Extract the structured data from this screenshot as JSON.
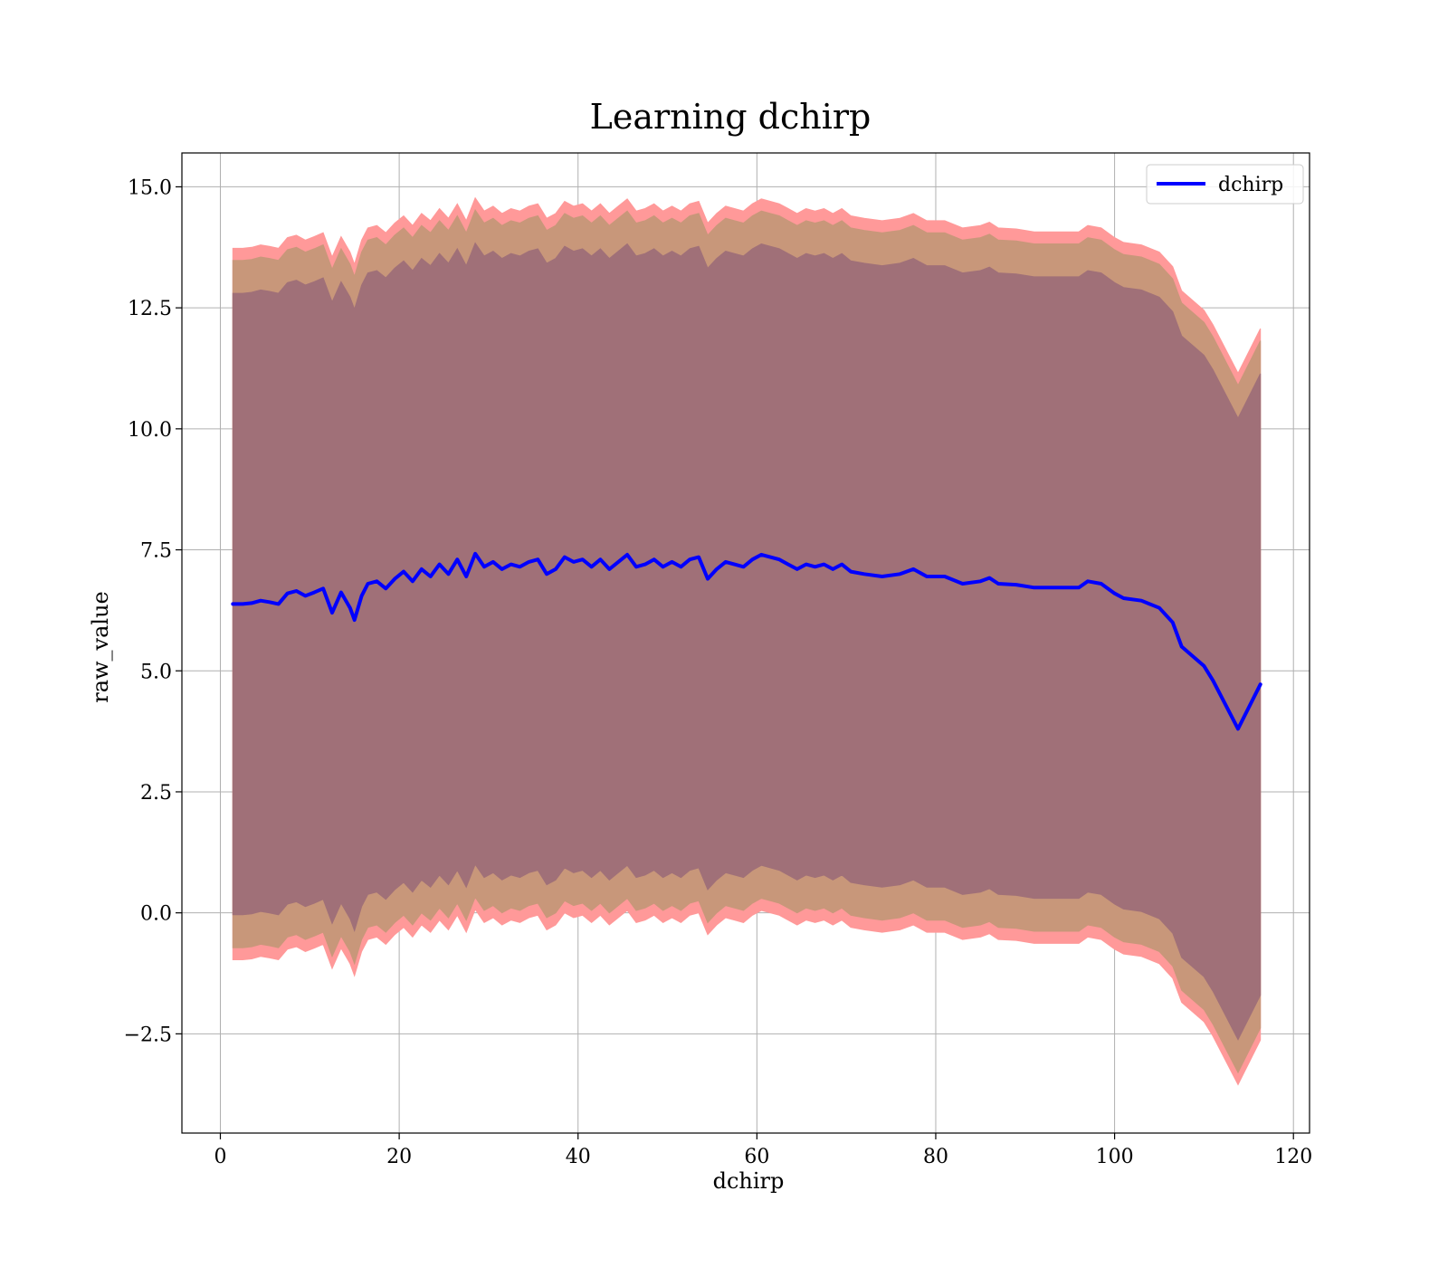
{
  "chart_data": {
    "type": "line",
    "title": "Learning dchirp",
    "xlabel": "dchirp",
    "ylabel": "raw_value",
    "xlim": [
      -4.3,
      121.8
    ],
    "ylim": [
      -4.55,
      15.7
    ],
    "xticks": [
      0,
      20,
      40,
      60,
      80,
      100,
      120
    ],
    "yticks": [
      -2.5,
      0.0,
      2.5,
      5.0,
      7.5,
      10.0,
      12.5,
      15.0
    ],
    "xtick_labels": [
      "0",
      "20",
      "40",
      "60",
      "80",
      "100",
      "120"
    ],
    "ytick_labels": [
      "−2.5",
      "0.0",
      "2.5",
      "5.0",
      "7.5",
      "10.0",
      "12.5",
      "15.0"
    ],
    "grid": true,
    "legend": {
      "position": "top-right"
    },
    "colors": {
      "line": "#0000ff",
      "band_outer": "#ff9999",
      "band_middle": "#c8977a",
      "band_inner": "#a07078",
      "grid": "#b0b0b0"
    },
    "x": [
      1.4,
      2.5,
      3.5,
      4.5,
      5.5,
      6.5,
      7.5,
      8.5,
      9.5,
      10.5,
      11.5,
      12.5,
      13.5,
      14.5,
      15.0,
      15.8,
      16.5,
      17.5,
      18.5,
      19.5,
      20.5,
      21.5,
      22.5,
      23.5,
      24.5,
      25.5,
      26.5,
      27.5,
      28.5,
      29.5,
      30.5,
      31.5,
      32.5,
      33.5,
      34.5,
      35.5,
      36.5,
      37.5,
      38.5,
      39.5,
      40.5,
      41.5,
      42.5,
      43.5,
      44.5,
      45.5,
      46.5,
      47.5,
      48.5,
      49.5,
      50.5,
      51.5,
      52.5,
      53.5,
      54.5,
      55.5,
      56.5,
      57.5,
      58.5,
      59.5,
      60.5,
      61.5,
      62.5,
      63.5,
      64.5,
      65.5,
      66.5,
      67.5,
      68.5,
      69.5,
      70.5,
      72.0,
      74.0,
      76.0,
      77.5,
      79.0,
      81.0,
      83.0,
      85.0,
      86.0,
      87.0,
      89.0,
      91.0,
      93.0,
      96.0,
      97.0,
      98.5,
      100.0,
      101.0,
      103.0,
      105.0,
      106.5,
      107.5,
      110.0,
      111.0,
      113.8,
      116.3
    ],
    "series": [
      {
        "name": "dchirp",
        "values": [
          6.38,
          6.38,
          6.4,
          6.45,
          6.42,
          6.38,
          6.6,
          6.65,
          6.55,
          6.62,
          6.7,
          6.2,
          6.62,
          6.3,
          6.05,
          6.55,
          6.8,
          6.85,
          6.7,
          6.9,
          7.05,
          6.85,
          7.1,
          6.95,
          7.2,
          7.0,
          7.3,
          6.95,
          7.42,
          7.15,
          7.25,
          7.1,
          7.2,
          7.15,
          7.25,
          7.3,
          7.0,
          7.1,
          7.35,
          7.25,
          7.3,
          7.15,
          7.3,
          7.1,
          7.25,
          7.4,
          7.15,
          7.2,
          7.3,
          7.15,
          7.25,
          7.15,
          7.3,
          7.35,
          6.9,
          7.1,
          7.25,
          7.2,
          7.15,
          7.3,
          7.4,
          7.35,
          7.3,
          7.2,
          7.1,
          7.2,
          7.15,
          7.2,
          7.1,
          7.2,
          7.05,
          7.0,
          6.95,
          7.0,
          7.1,
          6.95,
          6.95,
          6.8,
          6.85,
          6.92,
          6.8,
          6.78,
          6.72,
          6.72,
          6.72,
          6.85,
          6.8,
          6.6,
          6.5,
          6.45,
          6.3,
          6.0,
          5.5,
          5.1,
          4.8,
          3.8,
          4.72
        ]
      }
    ],
    "bands": [
      {
        "offset_upper": 7.35,
        "offset_lower": 7.35
      },
      {
        "offset_upper": 7.1,
        "offset_lower": 7.1
      },
      {
        "offset_upper": 6.42,
        "offset_lower": 6.42
      }
    ],
    "legend_entries": [
      "dchirp"
    ]
  }
}
